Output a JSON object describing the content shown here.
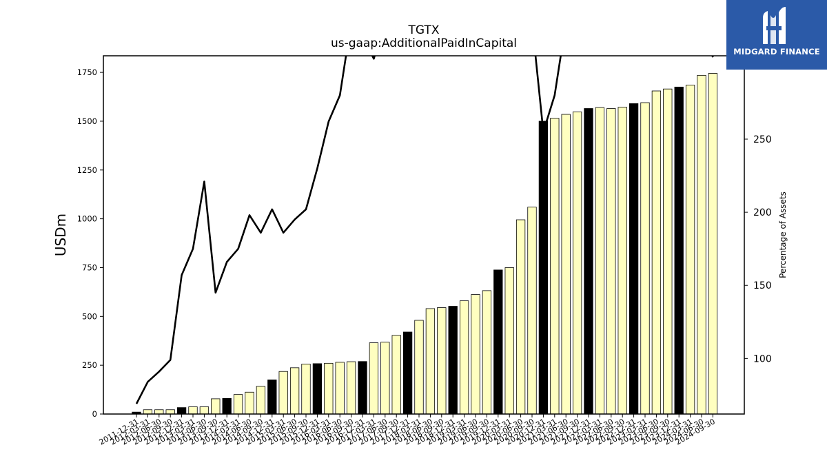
{
  "chart_data": {
    "type": "bar",
    "title": "TGTX",
    "subtitle": "us-gaap:AdditionalPaidInCapital",
    "ylabel": "USDm",
    "y2label": "Percentage of Assets",
    "ylim": [
      0,
      1835
    ],
    "y2lim": [
      62,
      307
    ],
    "yticks": [
      0,
      250,
      500,
      750,
      1000,
      1250,
      1500,
      1750
    ],
    "y2ticks": [
      100,
      150,
      200,
      250
    ],
    "categories": [
      "2011-12-31",
      "2012-03-31",
      "2012-06-30",
      "2012-09-30",
      "2012-12-31",
      "2013-03-31",
      "2013-06-30",
      "2013-09-30",
      "2013-12-31",
      "2014-03-31",
      "2014-06-30",
      "2014-09-30",
      "2014-12-31",
      "2015-03-31",
      "2015-06-30",
      "2015-09-30",
      "2015-12-31",
      "2016-03-31",
      "2016-06-30",
      "2016-09-30",
      "2016-12-31",
      "2017-03-31",
      "2017-06-30",
      "2017-09-30",
      "2017-12-31",
      "2018-03-31",
      "2018-06-30",
      "2018-09-30",
      "2018-12-31",
      "2019-03-31",
      "2019-06-30",
      "2019-09-30",
      "2019-12-31",
      "2020-03-31",
      "2020-06-30",
      "2020-09-30",
      "2020-12-31",
      "2021-03-31",
      "2021-06-30",
      "2021-09-30",
      "2021-12-31",
      "2022-03-31",
      "2022-06-30",
      "2022-09-30",
      "2022-12-31",
      "2023-03-31",
      "2023-06-30",
      "2023-09-30",
      "2023-12-31",
      "2024-03-31",
      "2024-06-30",
      "2024-09-30"
    ],
    "series": [
      {
        "values": [
          10,
          22,
          22,
          22,
          33,
          37,
          37,
          78,
          80,
          100,
          112,
          142,
          175,
          218,
          237,
          256,
          258,
          260,
          265,
          268,
          269,
          365,
          368,
          403,
          420,
          480,
          540,
          545,
          552,
          580,
          612,
          632,
          738,
          750,
          995,
          1060,
          1500,
          1515,
          1535,
          1548,
          1565,
          1570,
          1565,
          1572,
          1590,
          1595,
          1655,
          1665,
          1675,
          1685,
          1735,
          1745
        ],
        "year_end": [
          true,
          false,
          false,
          false,
          true,
          false,
          false,
          false,
          true,
          false,
          false,
          false,
          true,
          false,
          false,
          false,
          true,
          false,
          false,
          false,
          true,
          false,
          false,
          false,
          true,
          false,
          false,
          false,
          true,
          false,
          false,
          false,
          true,
          false,
          false,
          false,
          true,
          false,
          false,
          false,
          true,
          false,
          false,
          false,
          true,
          false,
          false,
          false,
          true,
          false,
          false,
          false
        ]
      },
      {
        "values": [
          69,
          84,
          91,
          99,
          157,
          175,
          221,
          145,
          166,
          175,
          198,
          186,
          202,
          186,
          195,
          202,
          230,
          262,
          280,
          330,
          320,
          305,
          330,
          330,
          330,
          330,
          330,
          330,
          330,
          330,
          330,
          330,
          330,
          330,
          330,
          330,
          255,
          280,
          330,
          330,
          330,
          330,
          330,
          330,
          330,
          330,
          330,
          330,
          330,
          330,
          330,
          306
        ]
      }
    ],
    "colors": {
      "bar": "#ffffc0",
      "bar_year_end": "#000000",
      "bar_edge": "#000000",
      "line": "#000000"
    }
  },
  "logo": {
    "text": "MIDGARD FINANCE",
    "background": "#2b5aa8"
  }
}
